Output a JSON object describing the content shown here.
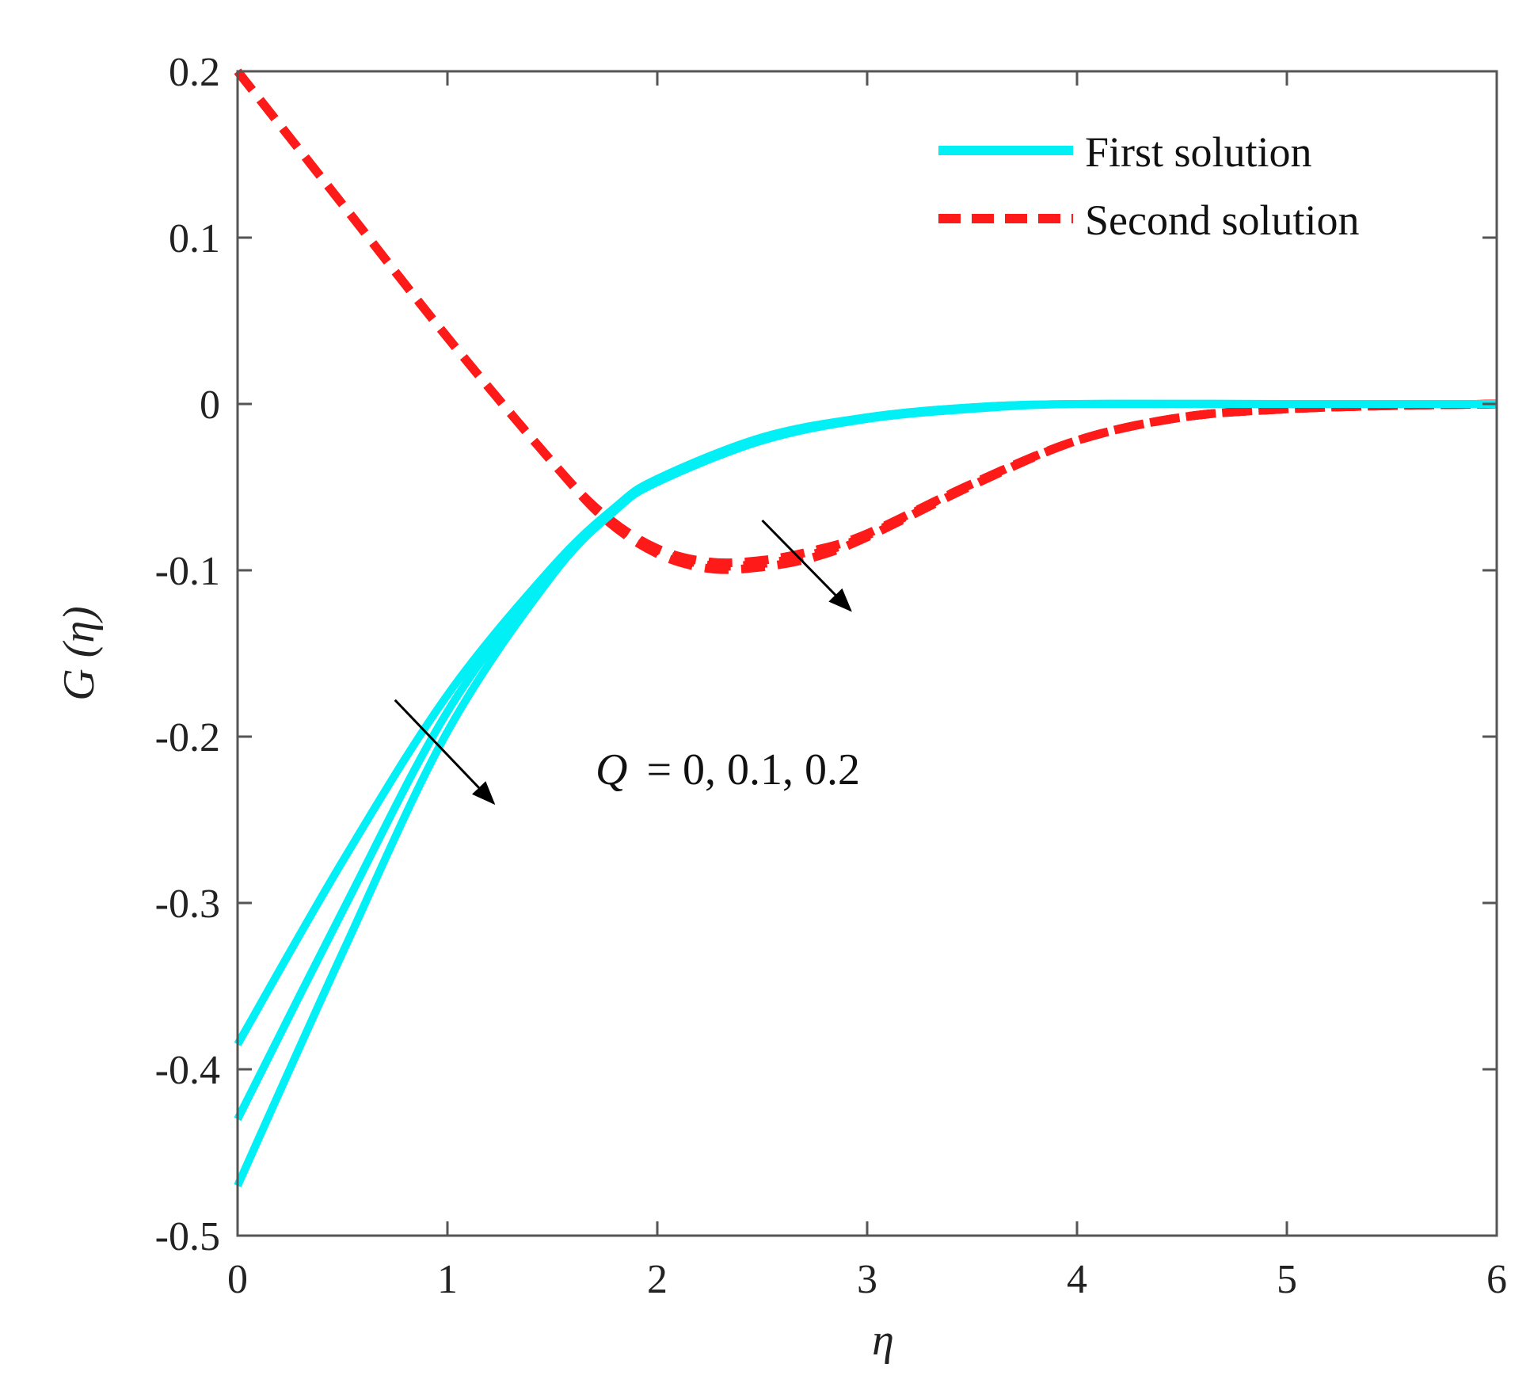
{
  "colors": {
    "first": "#00f0f5",
    "second": "#ff1a1a",
    "axis": "#555555",
    "arrow": "#000000"
  },
  "chart_data": {
    "type": "line",
    "title": "",
    "xlabel": "η",
    "ylabel": "G (η)",
    "xlim": [
      0,
      6
    ],
    "ylim": [
      -0.5,
      0.2
    ],
    "xticks": [
      0,
      1,
      2,
      3,
      4,
      5,
      6
    ],
    "yticks": [
      0.2,
      0.1,
      0,
      -0.1,
      -0.2,
      -0.3,
      -0.4,
      -0.5
    ],
    "xtick_labels": [
      "0",
      "1",
      "2",
      "3",
      "4",
      "5",
      "6"
    ],
    "ytick_labels": [
      "0.2",
      "0.1",
      "0",
      "-0.1",
      "-0.2",
      "-0.3",
      "-0.4",
      "-0.5"
    ],
    "grid": false,
    "legend_position": "top-right",
    "legend": [
      "First solution",
      "Second solution"
    ],
    "annotation": {
      "q_symbol": "Q",
      "q_values": "= 0, 0.1, 0.2"
    },
    "series": [
      {
        "name": "First solution",
        "group": "first",
        "Q": 0,
        "x": [
          0,
          0.5,
          1.0,
          1.5,
          1.8,
          2.0,
          2.5,
          3.0,
          3.5,
          4.0,
          5.0,
          6.0
        ],
        "y": [
          -0.385,
          -0.275,
          -0.175,
          -0.098,
          -0.062,
          -0.045,
          -0.02,
          -0.008,
          -0.002,
          0.0,
          0.0,
          0.0
        ]
      },
      {
        "name": "First solution",
        "group": "first",
        "Q": 0.1,
        "x": [
          0,
          0.5,
          1.0,
          1.5,
          1.8,
          2.0,
          2.5,
          3.0,
          3.5,
          4.0,
          5.0,
          6.0
        ],
        "y": [
          -0.43,
          -0.305,
          -0.185,
          -0.1,
          -0.063,
          -0.046,
          -0.021,
          -0.008,
          -0.002,
          0.0,
          0.0,
          0.0
        ]
      },
      {
        "name": "First solution",
        "group": "first",
        "Q": 0.2,
        "x": [
          0,
          0.5,
          1.0,
          1.5,
          1.8,
          2.0,
          2.5,
          3.0,
          3.5,
          4.0,
          5.0,
          6.0
        ],
        "y": [
          -0.47,
          -0.33,
          -0.197,
          -0.103,
          -0.064,
          -0.047,
          -0.022,
          -0.009,
          -0.003,
          0.0,
          0.0,
          0.0
        ]
      },
      {
        "name": "Second solution",
        "group": "second",
        "Q": 0,
        "x": [
          0,
          0.5,
          1.0,
          1.5,
          1.75,
          2.0,
          2.25,
          2.5,
          2.75,
          3.0,
          3.5,
          4.0,
          4.5,
          5.0,
          5.5,
          6.0
        ],
        "y": [
          0.2,
          0.12,
          0.04,
          -0.035,
          -0.067,
          -0.087,
          -0.095,
          -0.094,
          -0.088,
          -0.078,
          -0.048,
          -0.022,
          -0.008,
          -0.003,
          -0.001,
          0.0
        ]
      },
      {
        "name": "Second solution",
        "group": "second",
        "Q": 0.1,
        "x": [
          0,
          0.5,
          1.0,
          1.5,
          1.75,
          2.0,
          2.25,
          2.5,
          2.75,
          3.0,
          3.5,
          4.0,
          4.5,
          5.0,
          5.5,
          6.0
        ],
        "y": [
          0.2,
          0.12,
          0.04,
          -0.035,
          -0.068,
          -0.088,
          -0.097,
          -0.096,
          -0.09,
          -0.079,
          -0.048,
          -0.022,
          -0.008,
          -0.003,
          -0.001,
          0.0
        ]
      },
      {
        "name": "Second solution",
        "group": "second",
        "Q": 0.2,
        "x": [
          0,
          0.5,
          1.0,
          1.5,
          1.75,
          2.0,
          2.25,
          2.5,
          2.75,
          3.0,
          3.5,
          4.0,
          4.5,
          5.0,
          5.5,
          6.0
        ],
        "y": [
          0.2,
          0.12,
          0.04,
          -0.035,
          -0.069,
          -0.09,
          -0.099,
          -0.098,
          -0.092,
          -0.08,
          -0.049,
          -0.022,
          -0.008,
          -0.003,
          -0.001,
          0.0
        ]
      }
    ],
    "arrows": [
      {
        "from": [
          0.75,
          -0.178
        ],
        "to": [
          1.22,
          -0.24
        ]
      },
      {
        "from": [
          2.5,
          -0.07
        ],
        "to": [
          2.92,
          -0.124
        ]
      }
    ]
  }
}
